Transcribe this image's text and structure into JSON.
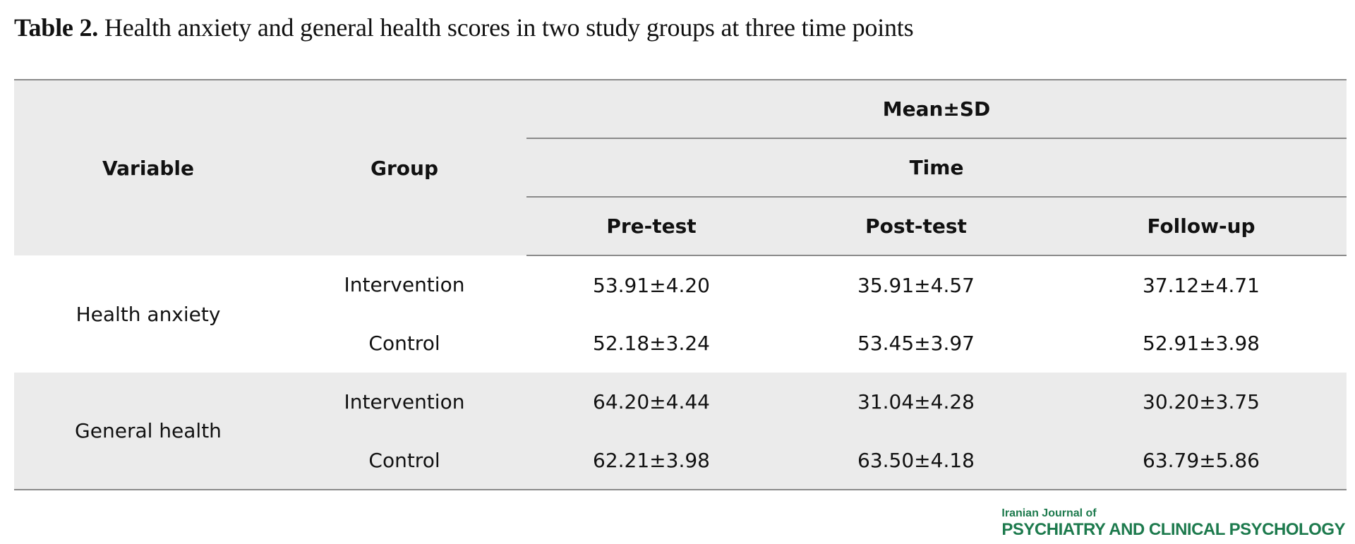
{
  "caption": {
    "label": "Table 2.",
    "text": "Health anxiety and general health scores in two study groups at three time points"
  },
  "table": {
    "headers": {
      "variable": "Variable",
      "group": "Group",
      "mean_sd": "Mean±SD",
      "time": "Time",
      "pre_test": "Pre-test",
      "post_test": "Post-test",
      "follow_up": "Follow-up"
    },
    "rows": [
      {
        "variable": "Health anxiety",
        "groups": [
          {
            "group": "Intervention",
            "pre": "53.91±4.20",
            "post": "35.91±4.57",
            "follow": "37.12±4.71"
          },
          {
            "group": "Control",
            "pre": "52.18±3.24",
            "post": "53.45±3.97",
            "follow": "52.91±3.98"
          }
        ]
      },
      {
        "variable": "General health",
        "groups": [
          {
            "group": "Intervention",
            "pre": "64.20±4.44",
            "post": "31.04±4.28",
            "follow": "30.20±3.75"
          },
          {
            "group": "Control",
            "pre": "62.21±3.98",
            "post": "63.50±4.18",
            "follow": "63.79±5.86"
          }
        ]
      }
    ]
  },
  "journal": {
    "line1": "Iranian Journal of",
    "line2": "PSYCHIATRY AND CLINICAL PSYCHOLOGY",
    "color": "#1d7a4d"
  }
}
